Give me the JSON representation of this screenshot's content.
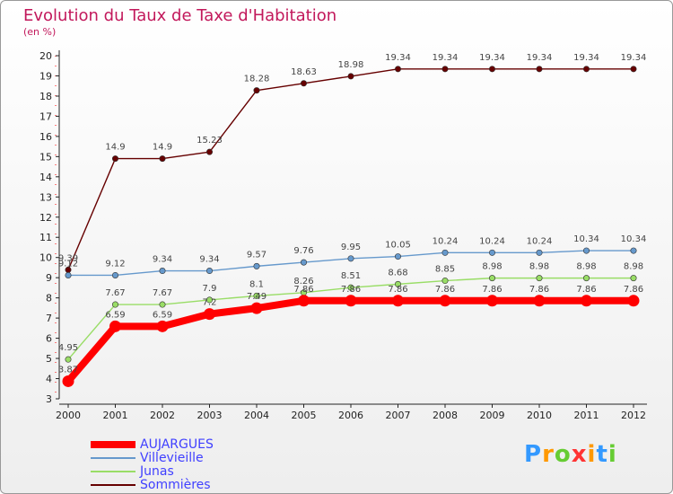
{
  "chart_data": {
    "type": "line",
    "title": "Evolution du Taux de Taxe d'Habitation",
    "subtitle": "(en %)",
    "categories": [
      "2000",
      "2001",
      "2002",
      "2003",
      "2004",
      "2005",
      "2006",
      "2007",
      "2008",
      "2009",
      "2010",
      "2011",
      "2012"
    ],
    "ylim": [
      3,
      20
    ],
    "y_ticks": [
      3,
      4,
      5,
      6,
      7,
      8,
      9,
      10,
      11,
      12,
      13,
      14,
      15,
      16,
      17,
      18,
      19,
      20
    ],
    "grid": false,
    "legend_position": "bottom-left",
    "series": [
      {
        "name": "AUJARGUES",
        "color": "#ff0000",
        "values": [
          3.87,
          6.59,
          6.59,
          7.2,
          7.49,
          7.86,
          7.86,
          7.86,
          7.86,
          7.86,
          7.86,
          7.86,
          7.86
        ],
        "labels": [
          "3.87",
          "6.59",
          "6.59",
          "7.2",
          "7.49",
          "7.86",
          "7.86",
          "7.86",
          "7.86",
          "7.86",
          "7.86",
          "7.86",
          "7.86"
        ]
      },
      {
        "name": "Villevieille",
        "color": "#6699cc",
        "values": [
          9.12,
          9.12,
          9.34,
          9.34,
          9.57,
          9.76,
          9.95,
          10.05,
          10.24,
          10.24,
          10.24,
          10.34,
          10.34
        ],
        "labels": [
          "9.12",
          "9.12",
          "9.34",
          "9.34",
          "9.57",
          "9.76",
          "9.95",
          "10.05",
          "10.24",
          "10.24",
          "10.24",
          "10.34",
          "10.34"
        ]
      },
      {
        "name": "Junas",
        "color": "#99dd66",
        "values": [
          4.95,
          7.67,
          7.67,
          7.9,
          8.1,
          8.26,
          8.51,
          8.68,
          8.85,
          8.98,
          8.98,
          8.98,
          8.98
        ],
        "labels": [
          "4.95",
          "7.67",
          "7.67",
          "7.9",
          "8.1",
          "8.26",
          "8.51",
          "8.68",
          "8.85",
          "8.98",
          "8.98",
          "8.98",
          "8.98"
        ]
      },
      {
        "name": "Sommières",
        "color": "#660000",
        "values": [
          9.39,
          14.9,
          14.9,
          15.23,
          18.28,
          18.63,
          18.98,
          19.34,
          19.34,
          19.34,
          19.34,
          19.34,
          19.34
        ],
        "labels": [
          "9.39",
          "14.9",
          "14.9",
          "15.23",
          "18.28",
          "18.63",
          "18.98",
          "19.34",
          "19.34",
          "19.34",
          "19.34",
          "19.34",
          "19.34"
        ]
      }
    ]
  },
  "logo": {
    "letters": [
      "P",
      "r",
      "o",
      "x",
      "i",
      "t",
      "i"
    ],
    "colors": [
      "#3399ff",
      "#ff9900",
      "#66cc33",
      "#ff3333",
      "#ff9900",
      "#3399ff",
      "#66cc33"
    ]
  }
}
